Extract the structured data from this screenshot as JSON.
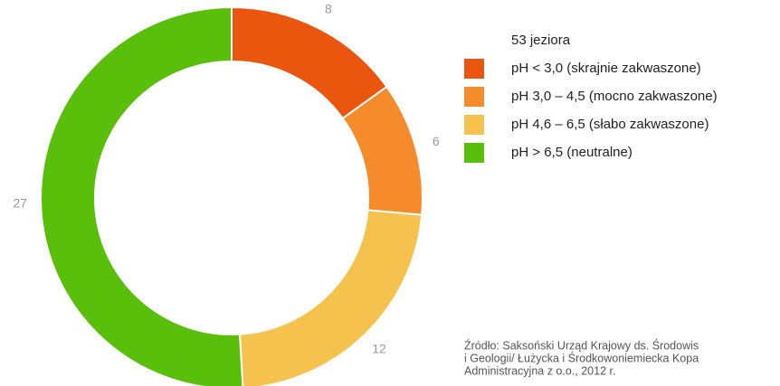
{
  "chart_data": {
    "type": "donut",
    "legend_title": "53 jeziora",
    "categories": [
      "pH < 3,0 (skrajnie zakwaszone)",
      "pH 3,0 – 4,5 (mocno zakwaszone)",
      "pH 4,6 – 6,5 (słabo zakwaszone)",
      "pH > 6,5 (neutralne)"
    ],
    "values": [
      8,
      6,
      12,
      27
    ],
    "colors": [
      "#ea560e",
      "#f58b2b",
      "#f6c24e",
      "#5abf0b"
    ],
    "source": [
      "Źródło: Saksoński Urząd Krajowy ds. Środowis",
      "i Geologii/ Łużycka i Środkowoniemiecka Kopa",
      "Administracyjna z o.o., 2012 r."
    ]
  }
}
